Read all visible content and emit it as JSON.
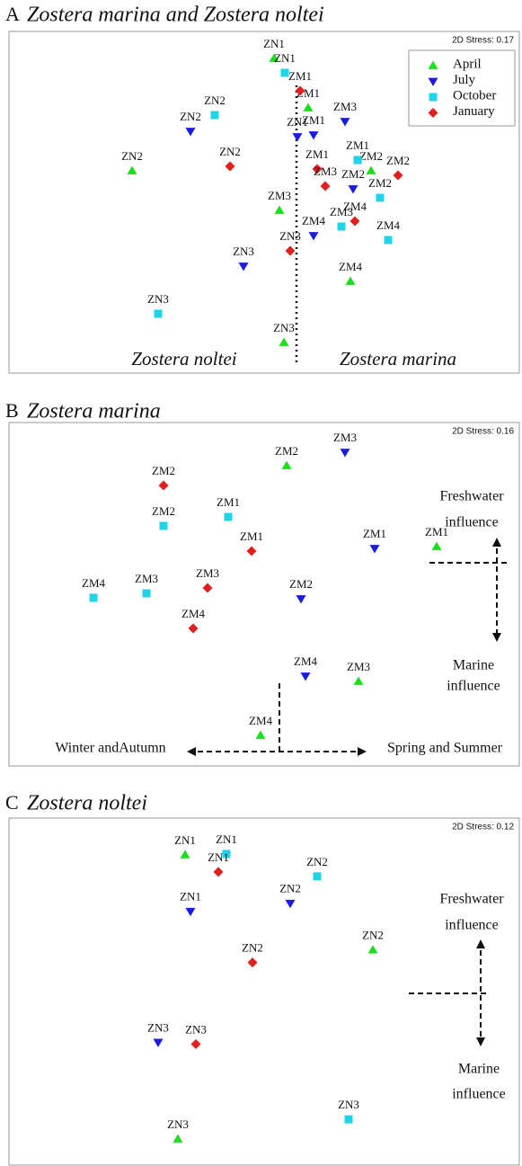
{
  "chart_data": [
    {
      "type": "scatter",
      "panel_label": "A",
      "title": "Zostera marina and Zostera noltei",
      "stress": "2D Stress: 0.17",
      "annotations": [
        "Zostera noltei",
        "Zostera marina"
      ],
      "legend": true,
      "xlim": [
        0,
        568
      ],
      "ylim": [
        0,
        380
      ],
      "series": [
        {
          "name": "April",
          "color": "#1edc1e",
          "marker": "triangle-up",
          "x": [
            295,
            333,
            137,
            403,
            301,
            380,
            306
          ],
          "y": [
            350,
            295,
            225,
            225,
            181,
            102,
            34
          ],
          "labels": [
            "ZN1",
            "ZM1",
            "ZN2",
            "ZM2",
            "ZM3",
            "ZM4",
            "ZN3"
          ]
        },
        {
          "name": "July",
          "color": "#1c1ce0",
          "marker": "triangle-down",
          "x": [
            374,
            321,
            339,
            202,
            383,
            339,
            261
          ],
          "y": [
            280,
            263,
            265,
            269,
            205,
            153,
            119
          ],
          "labels": [
            "ZM3",
            "ZN1",
            "ZM1",
            "ZN2",
            "ZM2",
            "ZM4",
            "ZN3"
          ]
        },
        {
          "name": "October",
          "color": "#20d4e8",
          "marker": "square",
          "x": [
            307,
            229,
            388,
            413,
            370,
            422,
            166
          ],
          "y": [
            334,
            287,
            237,
            195,
            163,
            148,
            66
          ],
          "labels": [
            "ZN1",
            "ZN2",
            "ZM1",
            "ZM2",
            "ZM3",
            "ZM4",
            "ZN3"
          ]
        },
        {
          "name": "January",
          "color": "#e0201e",
          "marker": "diamond",
          "x": [
            324,
            246,
            343,
            352,
            433,
            385,
            313
          ],
          "y": [
            314,
            230,
            227,
            208,
            220,
            169,
            136
          ],
          "labels": [
            "ZM1",
            "ZN2",
            "ZM1",
            "ZM3",
            "ZM2",
            "ZM4",
            "ZN3"
          ]
        }
      ]
    },
    {
      "type": "scatter",
      "panel_label": "B",
      "title": "Zostera marina",
      "stress": "2D Stress: 0.16",
      "annotations": [
        "Freshwater",
        "influence",
        "Marine",
        "influence",
        "Winter andAutumn",
        "Spring and Summer"
      ],
      "legend": false,
      "xlim": [
        0,
        568
      ],
      "ylim": [
        0,
        382
      ],
      "series": [
        {
          "color": "#1edc1e",
          "marker": "triangle-up",
          "x": [
            309,
            476,
            389,
            280
          ],
          "y": [
            334,
            244,
            94,
            34
          ],
          "labels": [
            "ZM2",
            "ZM1",
            "ZM3",
            "ZM4"
          ]
        },
        {
          "color": "#1c1ce0",
          "marker": "triangle-down",
          "x": [
            374,
            407,
            325,
            330
          ],
          "y": [
            349,
            242,
            186,
            100
          ],
          "labels": [
            "ZM3",
            "ZM1",
            "ZM2",
            "ZM4"
          ]
        },
        {
          "color": "#20d4e8",
          "marker": "square",
          "x": [
            172,
            244,
            153,
            94
          ],
          "y": [
            267,
            277,
            192,
            187
          ],
          "labels": [
            "ZM2",
            "ZM1",
            "ZM3",
            "ZM4"
          ]
        },
        {
          "color": "#e0201e",
          "marker": "diamond",
          "x": [
            172,
            270,
            221,
            205
          ],
          "y": [
            312,
            239,
            198,
            153
          ],
          "labels": [
            "ZM2",
            "ZM1",
            "ZM3",
            "ZM4"
          ]
        }
      ]
    },
    {
      "type": "scatter",
      "panel_label": "C",
      "title": "Zostera noltei",
      "stress": "2D Stress: 0.12",
      "annotations": [
        "Freshwater",
        "influence",
        "Marine",
        "influence"
      ],
      "legend": false,
      "xlim": [
        0,
        568
      ],
      "ylim": [
        0,
        387
      ],
      "series": [
        {
          "color": "#1edc1e",
          "marker": "triangle-up",
          "x": [
            196,
            405,
            188
          ],
          "y": [
            346,
            240,
            29
          ],
          "labels": [
            "ZN1",
            "ZN2",
            "ZN3"
          ]
        },
        {
          "color": "#1c1ce0",
          "marker": "triangle-down",
          "x": [
            202,
            313,
            166
          ],
          "y": [
            283,
            292,
            137
          ],
          "labels": [
            "ZN1",
            "ZN2",
            "ZN3"
          ]
        },
        {
          "color": "#20d4e8",
          "marker": "square",
          "x": [
            242,
            343,
            378
          ],
          "y": [
            347,
            322,
            51
          ],
          "labels": [
            "ZN1",
            "ZN2",
            "ZN3"
          ]
        },
        {
          "color": "#e0201e",
          "marker": "diamond",
          "x": [
            233,
            271,
            208
          ],
          "y": [
            327,
            226,
            135
          ],
          "labels": [
            "ZN1",
            "ZN2",
            "ZN3"
          ]
        }
      ]
    }
  ]
}
